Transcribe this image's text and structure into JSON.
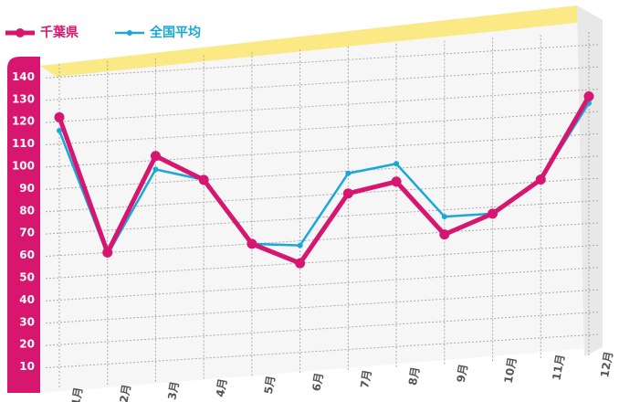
{
  "chart_data": {
    "type": "line",
    "categories": [
      "1月",
      "2月",
      "3月",
      "4月",
      "5月",
      "6月",
      "7月",
      "8月",
      "9月",
      "10月",
      "11月",
      "12月"
    ],
    "series": [
      {
        "name": "千葉県",
        "color": "#d6166f",
        "values": [
          122,
          60,
          102,
          90,
          60,
          50,
          80,
          84,
          59,
          67,
          81,
          117
        ]
      },
      {
        "name": "全国平均",
        "color": "#1aa7d9",
        "values": [
          116,
          59,
          96,
          90,
          60,
          58,
          89,
          92,
          67,
          67,
          81,
          114
        ]
      }
    ],
    "ylim": [
      0,
      150
    ],
    "yticks": [
      10,
      20,
      30,
      40,
      50,
      60,
      70,
      80,
      90,
      100,
      110,
      120,
      130,
      140
    ],
    "grid": true
  }
}
